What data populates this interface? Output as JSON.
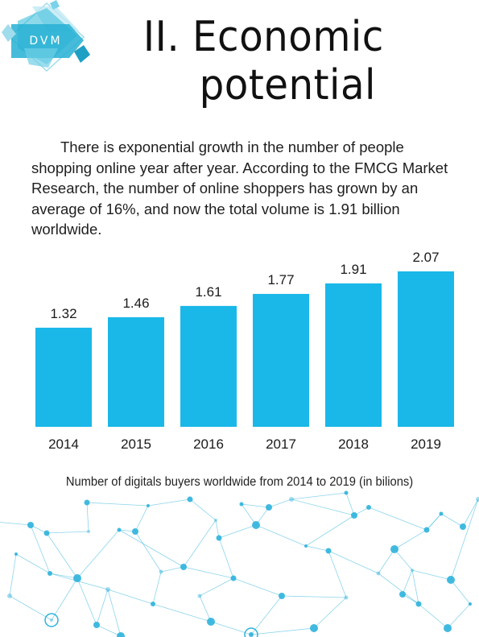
{
  "logo": {
    "text": "DVM",
    "accent": "#1fb6d6"
  },
  "title": {
    "line1": "II. Economic",
    "line2": "potential"
  },
  "intro": "There is exponential growth in the number of people shopping online year after year. According to the FMCG Market Research, the number of online shoppers has grown by an average  of 16%, and now the total volume is 1.91 billion worldwide.",
  "colors": {
    "bar": "#1ab8e8",
    "network": "#2eb2dc"
  },
  "chart_data": {
    "type": "bar",
    "categories": [
      "2014",
      "2015",
      "2016",
      "2017",
      "2018",
      "2019"
    ],
    "values": [
      1.32,
      1.46,
      1.61,
      1.77,
      1.91,
      2.07
    ],
    "value_labels": [
      "1.32",
      "1.46",
      "1.61",
      "1.77",
      "1.91",
      "2.07"
    ],
    "title": "",
    "xlabel": "",
    "ylabel": "",
    "ylim": [
      0,
      2.07
    ],
    "grid": false,
    "legend": "none"
  },
  "caption": "Number of digitals buyers worldwide from 2014 to 2019 (in bilions)"
}
